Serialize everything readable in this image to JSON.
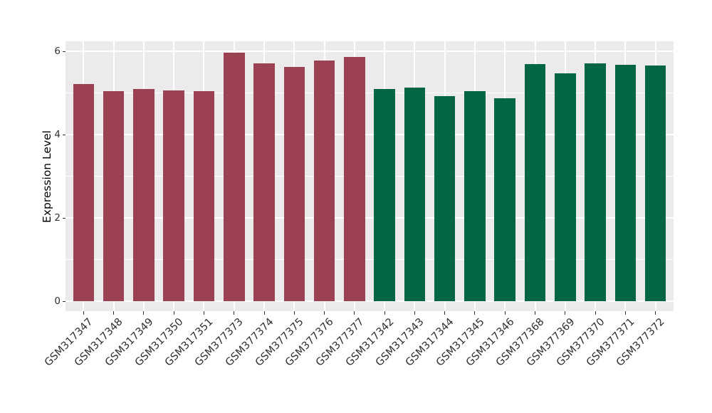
{
  "chart_data": {
    "type": "bar",
    "title": "",
    "xlabel": "",
    "ylabel": "Expression Level",
    "categories": [
      "GSM317347",
      "GSM317348",
      "GSM317349",
      "GSM317350",
      "GSM317351",
      "GSM377373",
      "GSM377374",
      "GSM377375",
      "GSM377376",
      "GSM377377",
      "GSM317342",
      "GSM317343",
      "GSM317344",
      "GSM317345",
      "GSM317346",
      "GSM377368",
      "GSM377369",
      "GSM377370",
      "GSM377371",
      "GSM377372"
    ],
    "values": [
      5.21,
      5.04,
      5.09,
      5.06,
      5.05,
      5.97,
      5.72,
      5.63,
      5.78,
      5.86,
      5.1,
      5.13,
      4.93,
      5.05,
      4.88,
      5.69,
      5.48,
      5.71,
      5.68,
      5.66
    ],
    "bar_group_index": [
      0,
      0,
      0,
      0,
      0,
      0,
      0,
      0,
      0,
      0,
      1,
      1,
      1,
      1,
      1,
      1,
      1,
      1,
      1,
      1
    ],
    "group_colors": [
      "#9B4151",
      "#016546"
    ],
    "y_ticks": [
      0,
      2,
      4,
      6
    ],
    "y_tick_labels": [
      "0",
      "2",
      "4",
      "6"
    ],
    "y_minor_ticks": [
      1,
      3,
      5
    ],
    "ylim": [
      0,
      6.25
    ],
    "grid": true,
    "legend": "none",
    "panel_background": "#EBEBEB",
    "gridline_color": "#FFFFFF"
  }
}
